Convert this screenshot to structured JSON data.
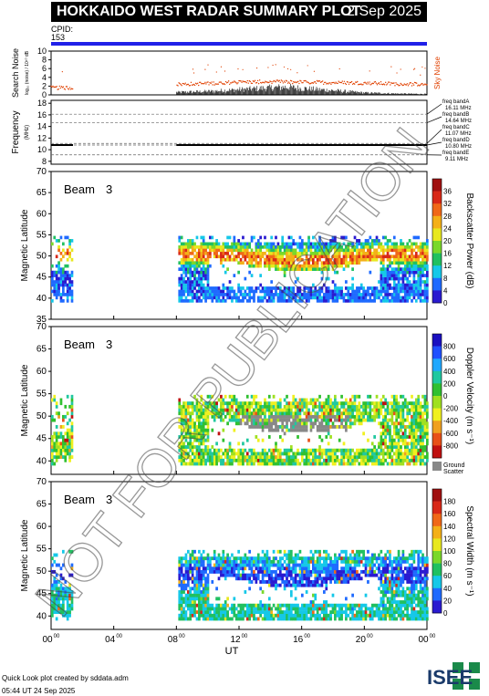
{
  "header": {
    "title": "HOKKAIDO WEST RADAR SUMMARY PLOT",
    "date": "2 Sep 2025",
    "cpid_label": "CPID:",
    "cpid_value": "153"
  },
  "watermark": "NOT FOR PUBLICATION",
  "footer": {
    "line1": "Quick Look plot created by sddata.adm",
    "line2": "05:44 UT 24 Sep 2025"
  },
  "logo_text": "ISEE",
  "colors": {
    "cpid_bar": "#2020e8",
    "sky_noise": "#e04000",
    "ground_scatter": "#888888"
  },
  "chart_data": [
    {
      "type": "scatter",
      "panel": "noise",
      "ylabel": "Search Noise",
      "ylabel_sub": "log₁₀ (noise) / 10¹⁰ dB",
      "legend": "Sky Noise",
      "yticks": [
        0,
        2,
        4,
        6,
        8,
        10
      ],
      "ylim": [
        0,
        10
      ],
      "xlim": [
        0,
        24
      ],
      "sky_noise": [
        [
          0,
          1.6
        ],
        [
          1.4,
          1.6
        ],
        [
          8,
          2.4
        ],
        [
          10,
          2.6
        ],
        [
          12,
          2.9
        ],
        [
          14,
          3.0
        ],
        [
          16,
          2.9
        ],
        [
          18,
          2.8
        ],
        [
          20,
          2.7
        ],
        [
          22,
          2.5
        ],
        [
          24,
          2.4
        ]
      ],
      "search_noise": [
        [
          8,
          0.6
        ],
        [
          10,
          0.8
        ],
        [
          12,
          1.2
        ],
        [
          14,
          1.6
        ],
        [
          15,
          1.8
        ],
        [
          16,
          1.5
        ],
        [
          18,
          1.0
        ],
        [
          20,
          0.5
        ],
        [
          22,
          0.3
        ],
        [
          24,
          0.2
        ]
      ]
    },
    {
      "type": "line",
      "panel": "frequency",
      "ylabel": "Frequency",
      "ylabel_unit": "(MHz)",
      "yticks": [
        8,
        10,
        12,
        14,
        16,
        18
      ],
      "ylim": [
        7.5,
        18.5
      ],
      "xlim": [
        0,
        24
      ],
      "bands": [
        {
          "label": "freq bandA",
          "value": "16.11 MHz",
          "mhz": 16.11
        },
        {
          "label": "freq bandB",
          "value": "14.64 MHz",
          "mhz": 14.64
        },
        {
          "label": "freq bandC",
          "value": "11.07 MHz",
          "mhz": 11.07
        },
        {
          "label": "freq bandD",
          "value": "10.80 MHz",
          "mhz": 10.8
        },
        {
          "label": "freq bandE",
          "value": "9.11 MHz",
          "mhz": 9.11
        }
      ],
      "frequency_trace": [
        [
          0,
          10.8
        ],
        [
          1.4,
          10.8
        ],
        [
          8,
          10.8
        ],
        [
          24,
          10.8
        ]
      ]
    },
    {
      "type": "heatmap",
      "panel": "power",
      "beam_label": "Beam",
      "beam_number": "3",
      "ylabel": "Magnetic Latitude",
      "yticks": [
        35,
        40,
        45,
        50,
        55,
        60,
        65,
        70
      ],
      "ylim": [
        35,
        70
      ],
      "xlim": [
        0,
        24
      ],
      "colorbar_label": "Backscatter Power (dB)",
      "colorbar_ticks": [
        0,
        4,
        8,
        12,
        16,
        20,
        24,
        28,
        32,
        36
      ],
      "colorbar_range": [
        0,
        40
      ],
      "data_windows": [
        [
          0,
          1.4
        ],
        [
          8,
          24
        ]
      ],
      "lat_range": [
        39,
        54.5
      ]
    },
    {
      "type": "heatmap",
      "panel": "velocity",
      "beam_label": "Beam",
      "beam_number": "3",
      "ylabel": "Magnetic Latitude",
      "yticks": [
        40,
        45,
        50,
        55,
        60,
        65,
        70
      ],
      "ylim": [
        37,
        70
      ],
      "xlim": [
        0,
        24
      ],
      "colorbar_label": "Doppler Velocity (m s⁻¹)",
      "colorbar_ticks": [
        800,
        600,
        400,
        200,
        0,
        -200,
        -400,
        -600,
        -800
      ],
      "colorbar_range": [
        -1000,
        1000
      ],
      "ground_scatter_label_1": "Ground",
      "ground_scatter_label_2": "Scatter",
      "data_windows": [
        [
          0,
          1.4
        ],
        [
          8,
          24
        ]
      ],
      "lat_range": [
        39,
        54.5
      ]
    },
    {
      "type": "heatmap",
      "panel": "width",
      "beam_label": "Beam",
      "beam_number": "3",
      "ylabel": "Magnetic Latitude",
      "yticks": [
        40,
        45,
        50,
        55,
        60,
        65,
        70
      ],
      "ylim": [
        37,
        70
      ],
      "xlim": [
        0,
        24
      ],
      "colorbar_label": "Spectral Width (m s⁻¹)",
      "colorbar_ticks": [
        0,
        20,
        40,
        60,
        80,
        100,
        120,
        140,
        160,
        180
      ],
      "colorbar_range": [
        0,
        200
      ],
      "data_windows": [
        [
          0,
          1.4
        ],
        [
          8,
          24
        ]
      ],
      "lat_range": [
        39,
        54.5
      ]
    }
  ],
  "xaxis": {
    "xlabel": "UT",
    "tick_labels": [
      {
        "h": "00",
        "m": "00",
        "t": 0
      },
      {
        "h": "04",
        "m": "00",
        "t": 4
      },
      {
        "h": "08",
        "m": "00",
        "t": 8
      },
      {
        "h": "12",
        "m": "00",
        "t": 12
      },
      {
        "h": "16",
        "m": "00",
        "t": 16
      },
      {
        "h": "20",
        "m": "00",
        "t": 20
      },
      {
        "h": "00",
        "m": "00",
        "t": 24
      }
    ]
  }
}
